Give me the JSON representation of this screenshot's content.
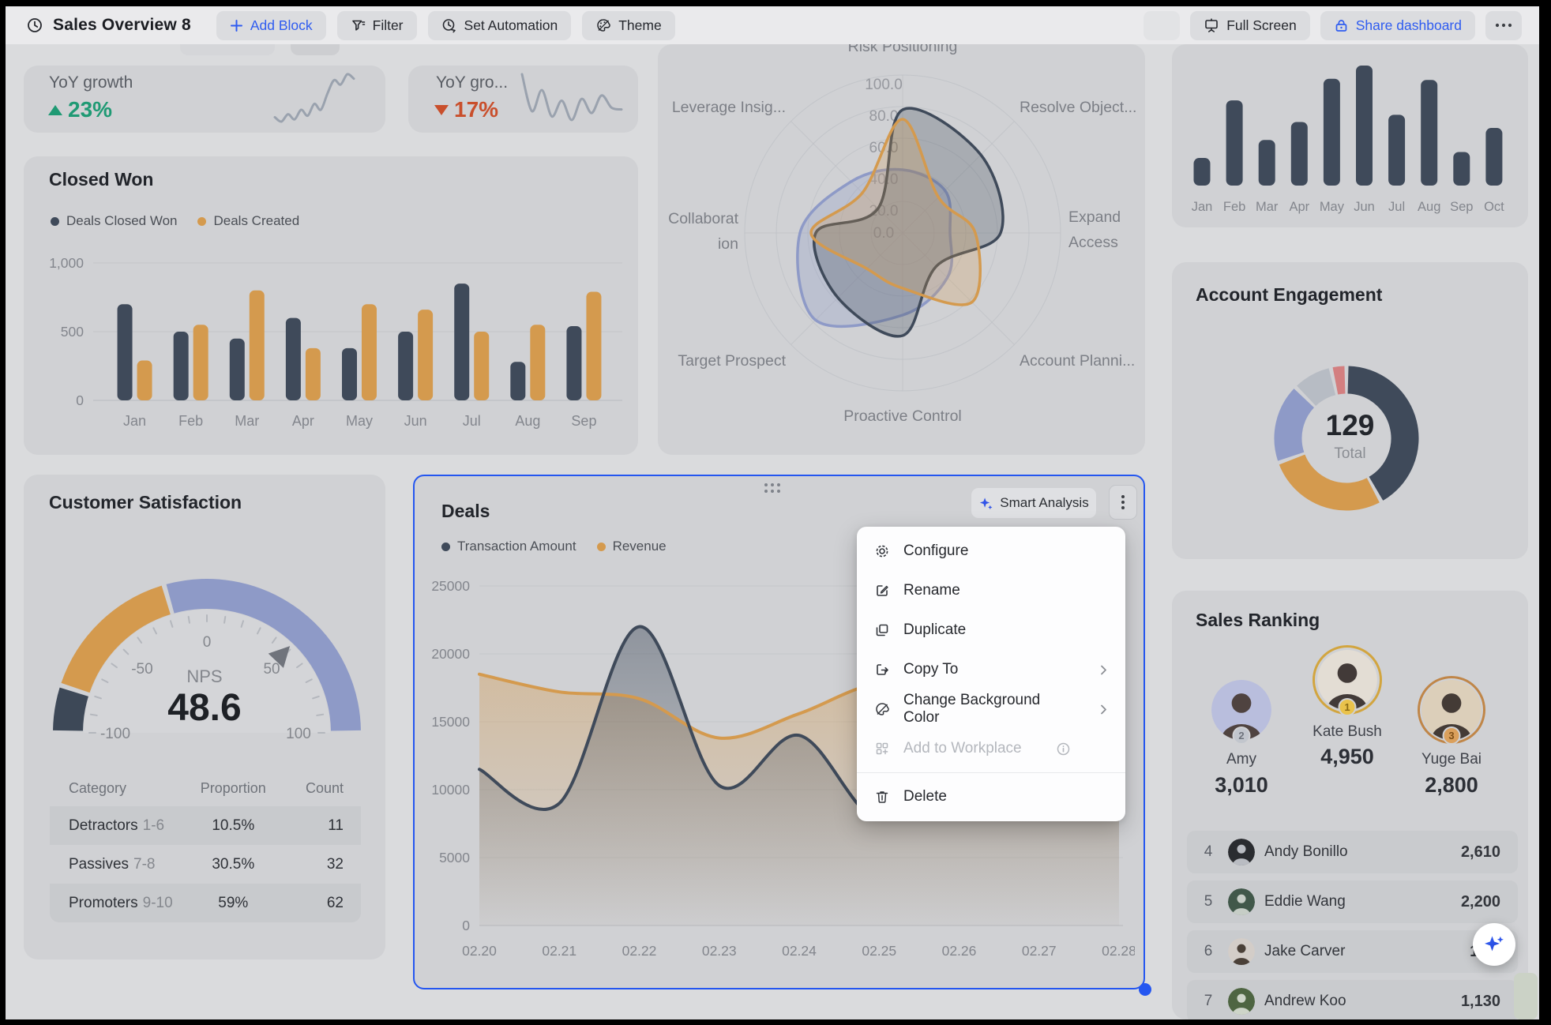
{
  "toolbar": {
    "title": "Sales Overview 8",
    "buttons": {
      "add_block": "Add Block",
      "filter": "Filter",
      "set_automation": "Set Automation",
      "theme": "Theme",
      "full_screen": "Full Screen",
      "share_dashboard": "Share dashboard"
    }
  },
  "kpi": {
    "card1": {
      "label": "YoY growth",
      "value": "23%",
      "trend": "up",
      "color": "#1f9a74"
    },
    "card2": {
      "label": "YoY gro...",
      "value": "17%",
      "trend": "down",
      "color": "#c94f2c"
    }
  },
  "closed_won": {
    "title": "Closed Won",
    "legend": [
      "Deals Closed Won",
      "Deals Created"
    ]
  },
  "account_engagement": {
    "title": "Account Engagement",
    "total_value": "129",
    "total_label": "Total"
  },
  "customer_satisfaction": {
    "title": "Customer Satisfaction",
    "nps_label": "NPS",
    "nps_value": "48.6",
    "table": {
      "headers": [
        "Category",
        "Proportion",
        "Count"
      ],
      "rows": [
        {
          "category": "Detractors",
          "range": "1-6",
          "proportion": "10.5%",
          "count": "11"
        },
        {
          "category": "Passives",
          "range": "7-8",
          "proportion": "30.5%",
          "count": "32"
        },
        {
          "category": "Promoters",
          "range": "9-10",
          "proportion": "59%",
          "count": "62"
        }
      ]
    }
  },
  "deals": {
    "title": "Deals",
    "smart_analysis": "Smart Analysis",
    "legend": [
      "Transaction Amount",
      "Revenue"
    ]
  },
  "menu": {
    "items": [
      {
        "label": "Configure"
      },
      {
        "label": "Rename"
      },
      {
        "label": "Duplicate"
      },
      {
        "label": "Copy To"
      },
      {
        "label": "Change Background Color"
      },
      {
        "label": "Add to Workplace"
      },
      {
        "label": "Delete"
      }
    ]
  },
  "sales_ranking": {
    "title": "Sales Ranking",
    "podium": [
      {
        "rank": "2",
        "name": "Amy",
        "value": "3,010",
        "avatar_bg": "#b9bedd",
        "avatar_fg": "#4f4340",
        "ring": "#c9cdd6"
      },
      {
        "rank": "1",
        "name": "Kate Bush",
        "value": "4,950",
        "avatar_bg": "#e3ddd4",
        "avatar_fg": "#423a38",
        "ring": "#d2a53f"
      },
      {
        "rank": "3",
        "name": "Yuge Bai",
        "value": "2,800",
        "avatar_bg": "#dccfba",
        "avatar_fg": "#443b36",
        "ring": "#c08648"
      }
    ],
    "rows": [
      {
        "rank": "4",
        "name": "Andy Bonillo",
        "value": "2,610",
        "avatar_bg": "#2a2c30",
        "avatar_fg": "#b9bcc2"
      },
      {
        "rank": "5",
        "name": "Eddie Wang",
        "value": "2,200",
        "avatar_bg": "#41584a",
        "avatar_fg": "#c6cdc6"
      },
      {
        "rank": "6",
        "name": "Jake Carver",
        "value": "1,81",
        "avatar_bg": "#d3cdc8",
        "avatar_fg": "#4a4038"
      },
      {
        "rank": "7",
        "name": "Andrew Koo",
        "value": "1,130",
        "avatar_bg": "#4e6542",
        "avatar_fg": "#cdd4c8"
      }
    ]
  },
  "colors": {
    "accent_blue": "#2f5cf0",
    "selection_blue": "#2456f0",
    "navy": "#3f4a5a",
    "orange": "#d49a4e",
    "purple": "#8e9ac7"
  },
  "chart_data": [
    {
      "id": "kpi1_spark",
      "type": "line",
      "values": [
        30,
        24,
        34,
        27,
        40,
        32,
        48,
        40,
        62,
        80,
        74,
        88,
        82
      ],
      "color": "#9aa2ae"
    },
    {
      "id": "kpi2_spark",
      "type": "line",
      "values": [
        82,
        40,
        64,
        34,
        52,
        30,
        54,
        38,
        58,
        44,
        42
      ],
      "color": "#9aa2ae"
    },
    {
      "id": "closed_won",
      "type": "bar",
      "title": "Closed Won",
      "categories": [
        "Jan",
        "Feb",
        "Mar",
        "Apr",
        "May",
        "Jun",
        "Jul",
        "Aug",
        "Sep"
      ],
      "series": [
        {
          "name": "Deals Closed Won",
          "color": "#3f4a5a",
          "values": [
            700,
            500,
            450,
            600,
            380,
            500,
            850,
            280,
            540
          ]
        },
        {
          "name": "Deals Created",
          "color": "#d49a4e",
          "values": [
            290,
            550,
            800,
            380,
            700,
            660,
            500,
            550,
            790
          ]
        }
      ],
      "ylim": [
        0,
        1000
      ],
      "yticks": [
        {
          "v": 0,
          "label": "0"
        },
        {
          "v": 500,
          "label": "500"
        },
        {
          "v": 1000,
          "label": "1,000"
        }
      ]
    },
    {
      "id": "radar",
      "type": "radar",
      "max": 100,
      "tick_labels": [
        "0.0",
        "20.0",
        "40.0",
        "60.0",
        "80.0",
        "100.0"
      ],
      "axes": [
        {
          "lines": [
            "Risk Positioning"
          ]
        },
        {
          "lines": [
            "Resolve Object..."
          ]
        },
        {
          "lines": [
            "Expand",
            "Access"
          ]
        },
        {
          "lines": [
            "Account Planni..."
          ]
        },
        {
          "lines": [
            "Proactive Control"
          ]
        },
        {
          "lines": [
            "Target Prospect"
          ]
        },
        {
          "lines": [
            "Collaborat",
            "ion"
          ]
        },
        {
          "lines": [
            "Leverage Insig..."
          ]
        }
      ],
      "series": [
        {
          "name": "series-navy",
          "color": "#3f4a5a",
          "values": [
            78,
            70,
            62,
            30,
            65,
            58,
            55,
            22
          ]
        },
        {
          "name": "series-orange",
          "color": "#d49a4e",
          "values": [
            72,
            32,
            46,
            62,
            35,
            32,
            58,
            36
          ]
        },
        {
          "name": "series-purple",
          "color": "#8e9ac7",
          "values": [
            40,
            38,
            30,
            40,
            52,
            78,
            65,
            46
          ]
        }
      ]
    },
    {
      "id": "monthly_bars",
      "type": "bar",
      "categories": [
        "Jan",
        "Feb",
        "Mar",
        "Apr",
        "May",
        "Jun",
        "Jul",
        "Aug",
        "Sep",
        "Oct"
      ],
      "values": [
        23,
        71,
        38,
        53,
        89,
        100,
        59,
        88,
        28,
        48
      ],
      "color": "#3f4a5a",
      "note": "relative heights, no y axis shown"
    },
    {
      "id": "engagement_donut",
      "type": "pie",
      "total": 129,
      "segments": [
        {
          "fraction": 0.42,
          "color": "#3f4a5a"
        },
        {
          "fraction": 0.275,
          "color": "#d49a4e"
        },
        {
          "fraction": 0.18,
          "color": "#8e9ac7"
        },
        {
          "fraction": 0.09,
          "color": "#b7bcc4"
        },
        {
          "fraction": 0.035,
          "color": "#d37f80"
        }
      ]
    },
    {
      "id": "nps_gauge",
      "type": "gauge",
      "min": -100,
      "max": 100,
      "value": 48.6,
      "label": "NPS",
      "bands": [
        {
          "from": -100,
          "to": -80,
          "color": "#3d4857"
        },
        {
          "from": -80,
          "to": -18,
          "color": "#d49a4e"
        },
        {
          "from": -18,
          "to": 100,
          "color": "#8e9ac7"
        }
      ],
      "tick_labels": [
        {
          "v": -100,
          "label": "-100"
        },
        {
          "v": -50,
          "label": "-50"
        },
        {
          "v": 0,
          "label": "0"
        },
        {
          "v": 50,
          "label": "50"
        },
        {
          "v": 100,
          "label": "100"
        }
      ]
    },
    {
      "id": "deals_chart",
      "type": "area",
      "x": [
        "02.20",
        "02.21",
        "02.22",
        "02.23",
        "02.24",
        "02.25",
        "02.26",
        "02.27",
        "02.28"
      ],
      "series": [
        {
          "name": "Transaction Amount",
          "color": "#3f4a5a",
          "values": [
            11500,
            9000,
            22000,
            10300,
            14000,
            7800,
            12500,
            13500,
            9500
          ]
        },
        {
          "name": "Revenue",
          "color": "#d49a4e",
          "values": [
            18500,
            17200,
            16700,
            13800,
            15600,
            17800,
            16800,
            15200,
            17500
          ]
        }
      ],
      "ylim": [
        0,
        25000
      ],
      "yticks": [
        {
          "v": 0,
          "label": "0"
        },
        {
          "v": 5000,
          "label": "5000"
        },
        {
          "v": 10000,
          "label": "10000"
        },
        {
          "v": 15000,
          "label": "15000"
        },
        {
          "v": 20000,
          "label": "20000"
        },
        {
          "v": 25000,
          "label": "25000"
        }
      ]
    }
  ]
}
